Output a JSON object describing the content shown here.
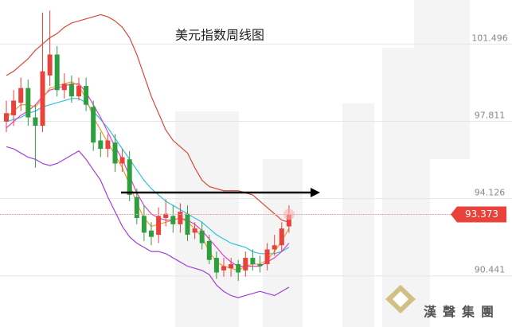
{
  "chart_data": {
    "type": "candlestick",
    "title": "美元指数周线图",
    "watermark": "漢聲集團",
    "ylim": [
      88.0,
      103.6
    ],
    "yticks": [
      90.441,
      94.126,
      97.811,
      101.496
    ],
    "up_color": "#e8423a",
    "down_color": "#2e9e3e",
    "open": [
      97.8,
      98.1,
      98.7,
      99.4,
      98.0,
      97.6,
      100.0,
      101.0,
      99.3,
      99.6,
      99.0,
      99.5,
      98.5,
      96.9,
      96.5,
      96.8,
      95.8,
      96.0,
      94.2,
      93.3,
      92.6,
      92.4,
      93.2,
      93.3,
      92.9,
      93.4,
      92.5,
      92.6,
      92.1,
      91.3,
      90.7,
      90.8,
      91.0,
      90.7,
      91.3,
      91.0,
      91.0,
      91.7,
      91.9,
      92.8
    ],
    "high": [
      98.8,
      99.3,
      99.9,
      99.8,
      98.6,
      103.0,
      103.1,
      101.4,
      100.1,
      100.0,
      99.9,
      99.9,
      98.8,
      97.3,
      97.2,
      97.2,
      96.5,
      96.4,
      94.6,
      93.8,
      93.0,
      93.7,
      94.1,
      93.8,
      93.9,
      93.8,
      93.0,
      93.0,
      92.4,
      91.6,
      91.3,
      91.3,
      91.2,
      91.6,
      91.7,
      91.4,
      92.0,
      92.4,
      93.0,
      93.8
    ],
    "low": [
      97.3,
      97.6,
      98.3,
      97.6,
      95.6,
      97.3,
      99.5,
      99.0,
      98.9,
      98.7,
      98.8,
      98.3,
      96.4,
      96.1,
      96.1,
      95.4,
      95.4,
      94.0,
      92.9,
      92.1,
      91.9,
      92.0,
      92.8,
      92.5,
      92.5,
      92.1,
      92.2,
      91.7,
      91.0,
      90.3,
      90.4,
      90.4,
      90.2,
      90.4,
      90.7,
      90.6,
      90.7,
      91.4,
      91.6,
      92.5
    ],
    "close": [
      98.2,
      98.8,
      99.4,
      98.0,
      97.6,
      100.2,
      101.0,
      99.3,
      99.6,
      99.0,
      99.5,
      98.6,
      96.8,
      96.5,
      96.9,
      95.8,
      96.1,
      94.3,
      93.2,
      92.5,
      92.3,
      93.3,
      93.4,
      92.9,
      93.5,
      92.4,
      92.7,
      92.0,
      91.2,
      90.6,
      90.9,
      91.0,
      90.6,
      91.3,
      91.0,
      90.9,
      91.7,
      91.9,
      92.7,
      93.373
    ],
    "series": [
      {
        "color": "#d9483b",
        "values": [
          100.0,
          100.2,
          100.5,
          100.8,
          101.2,
          101.5,
          101.8,
          102.0,
          102.3,
          102.5,
          102.6,
          102.7,
          102.8,
          102.9,
          102.8,
          102.6,
          102.3,
          101.8,
          101.0,
          100.0,
          99.0,
          98.2,
          97.4,
          96.9,
          96.6,
          96.3,
          95.6,
          95.0,
          94.7,
          94.6,
          94.5,
          94.5,
          94.5,
          94.4,
          94.3,
          94.0,
          93.7,
          93.4,
          93.1,
          93.0
        ]
      },
      {
        "color": "#a040d8",
        "values": [
          96.6,
          96.5,
          96.3,
          96.1,
          96.0,
          95.8,
          95.7,
          95.8,
          96.0,
          96.2,
          96.4,
          96.0,
          95.5,
          95.0,
          94.2,
          93.5,
          92.8,
          92.3,
          92.0,
          91.8,
          91.6,
          91.6,
          91.5,
          91.3,
          91.1,
          90.9,
          90.8,
          90.7,
          90.5,
          90.0,
          89.7,
          89.5,
          89.4,
          89.5,
          89.6,
          89.7,
          89.6,
          89.5,
          89.7,
          89.9
        ]
      },
      {
        "color": "#2ec4dc",
        "values": [
          97.8,
          97.9,
          98.0,
          98.2,
          98.3,
          98.5,
          98.6,
          98.7,
          98.8,
          98.9,
          98.9,
          98.7,
          98.3,
          97.9,
          97.5,
          97.0,
          96.5,
          96.0,
          95.5,
          95.0,
          94.6,
          94.3,
          94.0,
          93.8,
          93.6,
          93.4,
          93.2,
          93.0,
          92.7,
          92.4,
          92.2,
          92.0,
          91.9,
          91.8,
          91.6,
          91.5,
          91.5,
          91.5,
          91.6,
          91.8
        ]
      },
      {
        "color": "#e040c8",
        "values": [
          97.5,
          97.8,
          98.1,
          98.3,
          98.6,
          99.0,
          99.3,
          99.4,
          99.5,
          99.6,
          99.6,
          99.2,
          98.6,
          98.0,
          97.3,
          96.6,
          96.0,
          95.2,
          94.4,
          93.8,
          93.4,
          93.2,
          93.1,
          93.1,
          93.2,
          93.1,
          92.9,
          92.6,
          92.2,
          91.8,
          91.4,
          91.1,
          90.9,
          90.9,
          90.9,
          90.9,
          91.1,
          91.3,
          91.6,
          92.0
        ]
      },
      {
        "color": "#f09a2a",
        "values": [
          98.0,
          98.3,
          98.6,
          98.6,
          98.5,
          98.9,
          99.4,
          99.5,
          99.6,
          99.7,
          99.5,
          98.9,
          98.0,
          97.4,
          96.8,
          96.2,
          95.6,
          94.8,
          93.9,
          93.2,
          92.8,
          92.9,
          93.0,
          93.1,
          93.2,
          93.0,
          92.7,
          92.3,
          91.6,
          91.1,
          90.9,
          90.8,
          90.7,
          90.9,
          91.0,
          91.0,
          91.2,
          91.6,
          92.1,
          92.7
        ]
      }
    ]
  }
}
